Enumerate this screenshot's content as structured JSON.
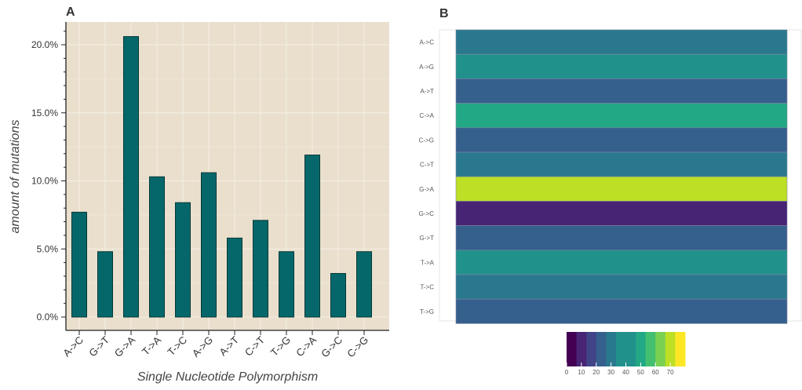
{
  "panel_a_label": "A",
  "panel_b_label": "B",
  "chart_data": [
    {
      "type": "bar",
      "title": "A",
      "xlabel": "Single Nucleotide Polymorphism",
      "ylabel": "amount of mutations",
      "categories": [
        "A->C",
        "G->T",
        "G->A",
        "T->A",
        "T->C",
        "A->G",
        "A->T",
        "C->T",
        "T->G",
        "C->A",
        "G->C",
        "C->G"
      ],
      "values": [
        7.7,
        4.8,
        20.6,
        10.3,
        8.4,
        10.6,
        5.8,
        7.1,
        4.8,
        11.9,
        3.2,
        4.8
      ],
      "ylim": [
        0,
        21.5
      ],
      "yticks": [
        0,
        5,
        10,
        15,
        20
      ],
      "ytick_labels": [
        "0.0%",
        "5.0%",
        "10.0%",
        "15.0%",
        "20.0%"
      ],
      "grid": true,
      "bar_color": "#05676a",
      "background_color": "#e9dfcc"
    },
    {
      "type": "heatmap",
      "title": "B",
      "rows": [
        "A->C",
        "A->G",
        "A->T",
        "C->A",
        "C->G",
        "C->T",
        "G->A",
        "G->C",
        "G->T",
        "T->A",
        "T->C",
        "T->G"
      ],
      "values": [
        30,
        38,
        20,
        45,
        20,
        30,
        75,
        10,
        20,
        38,
        30,
        20
      ],
      "colorscale": "viridis",
      "colorbar": {
        "min": 0,
        "max": 80,
        "ticks": [
          0,
          10,
          20,
          30,
          40,
          50,
          60,
          70
        ],
        "tick_labels": [
          "0",
          "10",
          "20",
          "30",
          "40",
          "50",
          "60",
          "70"
        ]
      }
    }
  ]
}
